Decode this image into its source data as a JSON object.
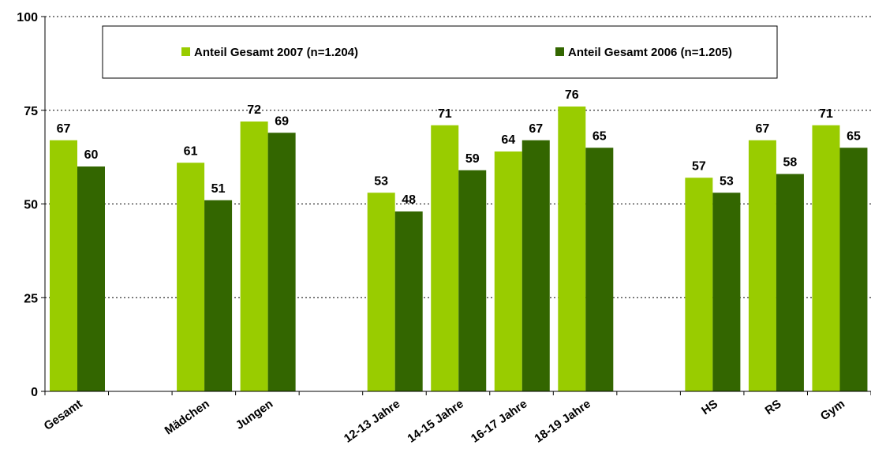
{
  "chart_data": {
    "type": "bar",
    "title": "",
    "xlabel": "",
    "ylabel": "",
    "ylim": [
      0,
      100
    ],
    "yticks": [
      0,
      25,
      50,
      75,
      100
    ],
    "grid": true,
    "legend_position": "top",
    "categories": [
      "Gesamt",
      "",
      "Mädchen",
      "Jungen",
      "",
      "12-13 Jahre",
      "14-15 Jahre",
      "16-17 Jahre",
      "18-19 Jahre",
      "",
      "HS",
      "RS",
      "Gym"
    ],
    "series": [
      {
        "name": "Anteil Gesamt 2007 (n=1.204)",
        "color": "#99cc00",
        "values": [
          67,
          null,
          61,
          72,
          null,
          53,
          71,
          64,
          76,
          null,
          57,
          67,
          71
        ]
      },
      {
        "name": "Anteil Gesamt 2006 (n=1.205)",
        "color": "#336600",
        "values": [
          60,
          null,
          51,
          69,
          null,
          48,
          59,
          67,
          65,
          null,
          53,
          58,
          65
        ]
      }
    ]
  }
}
